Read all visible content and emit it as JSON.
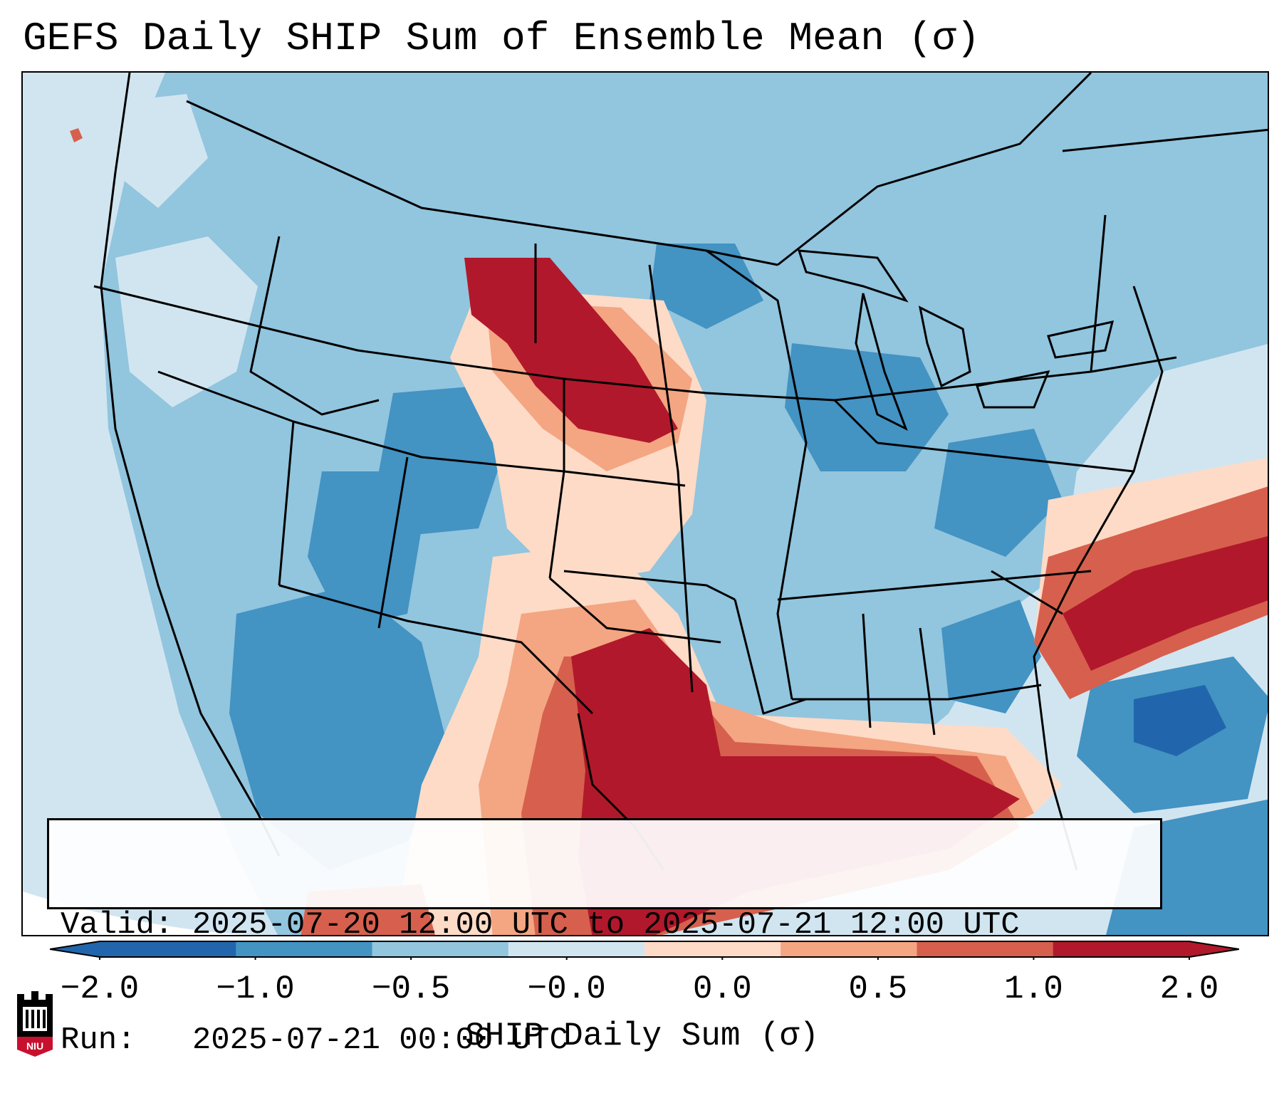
{
  "title": "GEFS Daily SHIP Sum of Ensemble Mean (σ)",
  "info": {
    "valid_label": "Valid:",
    "valid_value": "2025-07-20 12:00 UTC to 2025-07-21 12:00 UTC",
    "run_label": "Run:",
    "run_value": "2025-07-21 00:00 UTC"
  },
  "colorbar": {
    "label": "SHIP Daily Sum (σ)",
    "ticks": [
      "−2.0",
      "−1.0",
      "−0.5",
      "−0.0",
      "0.0",
      "0.5",
      "1.0",
      "2.0"
    ],
    "colors": [
      "#2166ac",
      "#4393c3",
      "#92c5de",
      "#d1e5f0",
      "#fddbc7",
      "#f4a582",
      "#d6604d",
      "#b2182b"
    ]
  },
  "logo": {
    "text": "NIU",
    "icon": "niu-logo-icon"
  },
  "map": {
    "region": "Contiguous United States",
    "palette": {
      "strong_neg": "#2166ac",
      "neg": "#4393c3",
      "mild_neg": "#92c5de",
      "weak_neg": "#d1e5f0",
      "weak_pos": "#fddbc7",
      "mild_pos": "#f4a582",
      "pos": "#d6604d",
      "strong_pos": "#b2182b"
    }
  }
}
